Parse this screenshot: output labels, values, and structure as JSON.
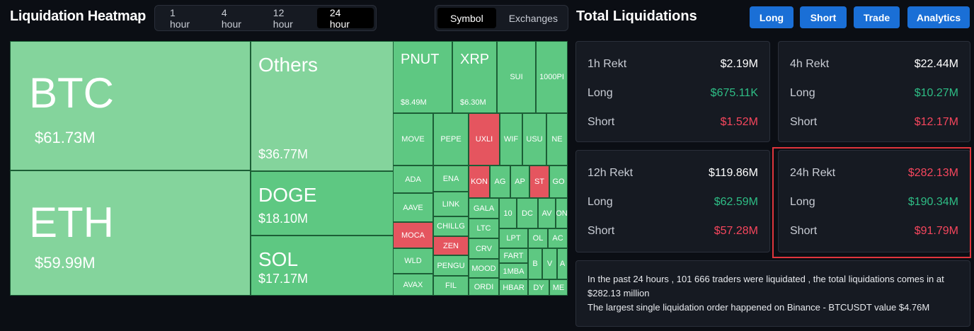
{
  "header": {
    "title": "Liquidation Heatmap",
    "time_tabs": [
      "1 hour",
      "4 hour",
      "12 hour",
      "24 hour"
    ],
    "view_tabs": [
      "Symbol",
      "Exchanges"
    ]
  },
  "treemap": {
    "tiles": [
      {
        "label": "BTC",
        "value": "$61.73M"
      },
      {
        "label": "ETH",
        "value": "$59.99M"
      },
      {
        "label": "Others",
        "value": "$36.77M"
      },
      {
        "label": "DOGE",
        "value": "$18.10M"
      },
      {
        "label": "SOL",
        "value": "$17.17M"
      },
      {
        "label": "PNUT",
        "value": "$8.49M"
      },
      {
        "label": "XRP",
        "value": "$6.30M"
      },
      {
        "label": "SUI"
      },
      {
        "label": "1000PI"
      },
      {
        "label": "MOVE"
      },
      {
        "label": "PEPE"
      },
      {
        "label": "UXLI"
      },
      {
        "label": "WIF"
      },
      {
        "label": "USU"
      },
      {
        "label": "NE"
      },
      {
        "label": "ADA"
      },
      {
        "label": "AAVE"
      },
      {
        "label": "MOCA"
      },
      {
        "label": "WLD"
      },
      {
        "label": "AVAX"
      },
      {
        "label": "ENA"
      },
      {
        "label": "LINK"
      },
      {
        "label": "CHILLG"
      },
      {
        "label": "ZEN"
      },
      {
        "label": "PENGU"
      },
      {
        "label": "FIL"
      },
      {
        "label": "KON"
      },
      {
        "label": "AG"
      },
      {
        "label": "AP"
      },
      {
        "label": "ST"
      },
      {
        "label": "GO"
      },
      {
        "label": "GALA"
      },
      {
        "label": "LTC"
      },
      {
        "label": "CRV"
      },
      {
        "label": "MOOD"
      },
      {
        "label": "ORDI"
      },
      {
        "label": "10"
      },
      {
        "label": "DC"
      },
      {
        "label": "AV"
      },
      {
        "label": "ON"
      },
      {
        "label": "LPT"
      },
      {
        "label": "OL"
      },
      {
        "label": "AC"
      },
      {
        "label": "FART"
      },
      {
        "label": "1MBA"
      },
      {
        "label": "HBAR"
      },
      {
        "label": "B"
      },
      {
        "label": "V"
      },
      {
        "label": "A"
      },
      {
        "label": "DY"
      },
      {
        "label": "ME"
      }
    ]
  },
  "panel": {
    "title": "Total Liquidations",
    "buttons": [
      "Long",
      "Short",
      "Trade",
      "Analytics"
    ],
    "cards": [
      {
        "label": "1h Rekt",
        "total": "$2.19M",
        "long_label": "Long",
        "long": "$675.11K",
        "short_label": "Short",
        "short": "$1.52M"
      },
      {
        "label": "4h Rekt",
        "total": "$22.44M",
        "long_label": "Long",
        "long": "$10.27M",
        "short_label": "Short",
        "short": "$12.17M"
      },
      {
        "label": "12h Rekt",
        "total": "$119.86M",
        "long_label": "Long",
        "long": "$62.59M",
        "short_label": "Short",
        "short": "$57.28M"
      },
      {
        "label": "24h Rekt",
        "total": "$282.13M",
        "long_label": "Long",
        "long": "$190.34M",
        "short_label": "Short",
        "short": "$91.79M"
      }
    ],
    "summary": [
      "In the past 24 hours , 101 666 traders were liquidated , the total liquidations comes in at $282.13 million",
      "The largest single liquidation order happened on Binance - BTCUSDT value $4.76M"
    ]
  }
}
